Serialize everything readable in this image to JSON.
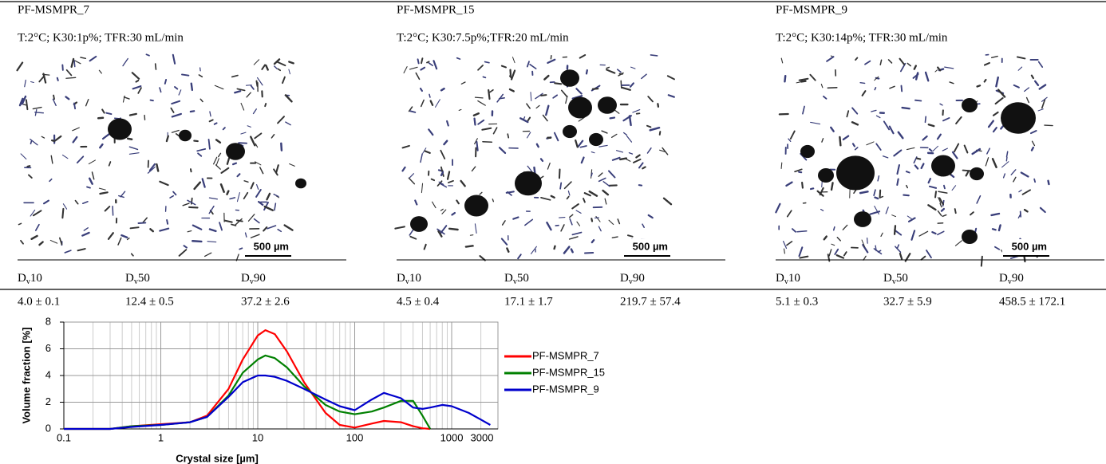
{
  "panels": [
    {
      "name": "PF-MSMPR_7",
      "conditions": "T:2°C; K30:1p%; TFR:30 mL/min",
      "scale_bar": "500 µm",
      "values": [
        "4.0 ± 0.1",
        "12.4 ± 0.5",
        "37.2 ± 2.6"
      ]
    },
    {
      "name": "PF-MSMPR_15",
      "conditions": "T:2°C; K30:7.5p%;TFR:20 mL/min",
      "scale_bar": "500 µm",
      "values": [
        "4.5 ± 0.4",
        "17.1 ± 1.7",
        "219.7 ± 57.4"
      ]
    },
    {
      "name": "PF-MSMPR_9",
      "conditions": "T:2°C; K30:14p%; TFR:30 mL/min",
      "scale_bar": "500 µm",
      "values": [
        "5.1 ± 0.3",
        "32.7 ± 5.9",
        "458.5 ± 172.1"
      ]
    }
  ],
  "headers": [
    {
      "base": "D",
      "sub": "v",
      "suffix": "10"
    },
    {
      "base": "D",
      "sub": "v",
      "suffix": "50"
    },
    {
      "base": "D",
      "sub": "v",
      "suffix": "90"
    }
  ],
  "chart_data": {
    "type": "line",
    "x_label": "Crystal size [µm]",
    "y_label": "Volume fraction [%]",
    "log_x": true,
    "grid": true,
    "x": [
      0.1,
      0.3,
      0.5,
      1,
      2,
      3,
      5,
      7,
      10,
      12,
      15,
      20,
      30,
      50,
      70,
      100,
      150,
      200,
      300,
      400,
      500,
      600,
      800,
      1000,
      1500,
      2000,
      2500
    ],
    "series": [
      {
        "name": "PF-MSMPR_7",
        "color": "#ff0000",
        "values": [
          0,
          0,
          0.2,
          0.35,
          0.5,
          1.0,
          3.0,
          5.2,
          7.0,
          7.4,
          7.1,
          5.8,
          3.5,
          1.2,
          0.3,
          0.1,
          0.4,
          0.6,
          0.5,
          0.2,
          0.05,
          0,
          null,
          null,
          null,
          null,
          null
        ]
      },
      {
        "name": "PF-MSMPR_15",
        "color": "#008000",
        "values": [
          0,
          0,
          0.2,
          0.3,
          0.5,
          0.9,
          2.5,
          4.2,
          5.2,
          5.5,
          5.3,
          4.6,
          3.2,
          1.8,
          1.3,
          1.1,
          1.3,
          1.6,
          2.1,
          2.1,
          1.0,
          0,
          null,
          null,
          null,
          null,
          null
        ]
      },
      {
        "name": "PF-MSMPR_9",
        "color": "#0000cc",
        "values": [
          0,
          0,
          0.15,
          0.3,
          0.5,
          0.9,
          2.4,
          3.5,
          4.0,
          4.0,
          3.9,
          3.6,
          3.0,
          2.2,
          1.7,
          1.4,
          2.2,
          2.7,
          2.3,
          1.6,
          1.5,
          1.6,
          1.8,
          1.7,
          1.2,
          0.7,
          0.3
        ]
      }
    ],
    "xlim": [
      0.1,
      3000
    ],
    "ylim": [
      0,
      8
    ],
    "xticks": [
      0.1,
      1,
      10,
      100,
      1000,
      3000
    ],
    "yticks": [
      0,
      2,
      4,
      6,
      8
    ],
    "legend": "right"
  }
}
